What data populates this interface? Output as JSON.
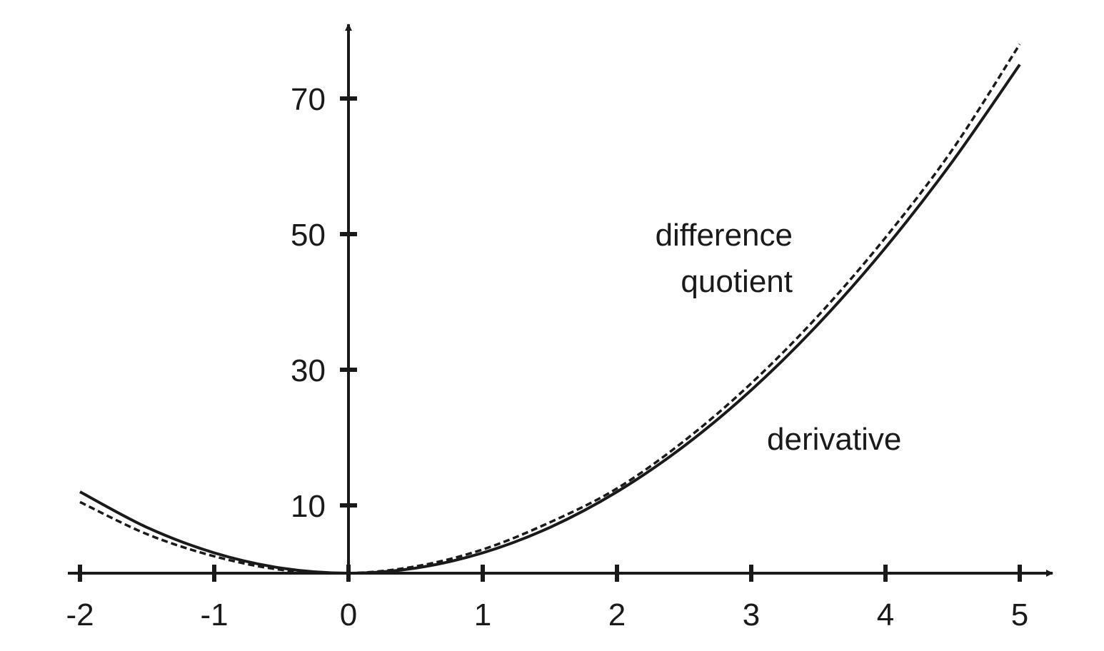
{
  "chart_data": {
    "type": "line",
    "title": "",
    "xlabel": "",
    "ylabel": "",
    "xlim": [
      -2,
      5
    ],
    "ylim": [
      0,
      70
    ],
    "grid": false,
    "x_ticks": [
      "-2",
      "-1",
      "0",
      "1",
      "2",
      "3",
      "4",
      "5"
    ],
    "y_ticks": [
      "10",
      "30",
      "50",
      "70"
    ],
    "series": [
      {
        "key": "derivative",
        "style": "solid",
        "x": [
          -2,
          -1.5,
          -1,
          -0.5,
          0,
          0.5,
          1,
          1.5,
          2,
          2.5,
          3,
          3.5,
          4,
          4.5,
          5
        ],
        "y": [
          12,
          6.75,
          3,
          0.75,
          0,
          0.75,
          3,
          6.75,
          12,
          18.75,
          27,
          36.75,
          48,
          60.75,
          75
        ]
      },
      {
        "key": "difference_quotient",
        "style": "dashed",
        "x": [
          -2,
          -1.5,
          -1,
          -0.5,
          0,
          0.5,
          1,
          1.5,
          2,
          2.5,
          3,
          3.5,
          4,
          4.5,
          5
        ],
        "y": [
          10.5,
          5.75,
          2.5,
          0.5,
          0,
          1,
          3.5,
          7.5,
          12.5,
          19.5,
          28,
          38,
          49.5,
          62.5,
          78
        ]
      }
    ],
    "annotations": {
      "difference_quotient": [
        "difference",
        "quotient"
      ],
      "derivative": "derivative"
    }
  }
}
